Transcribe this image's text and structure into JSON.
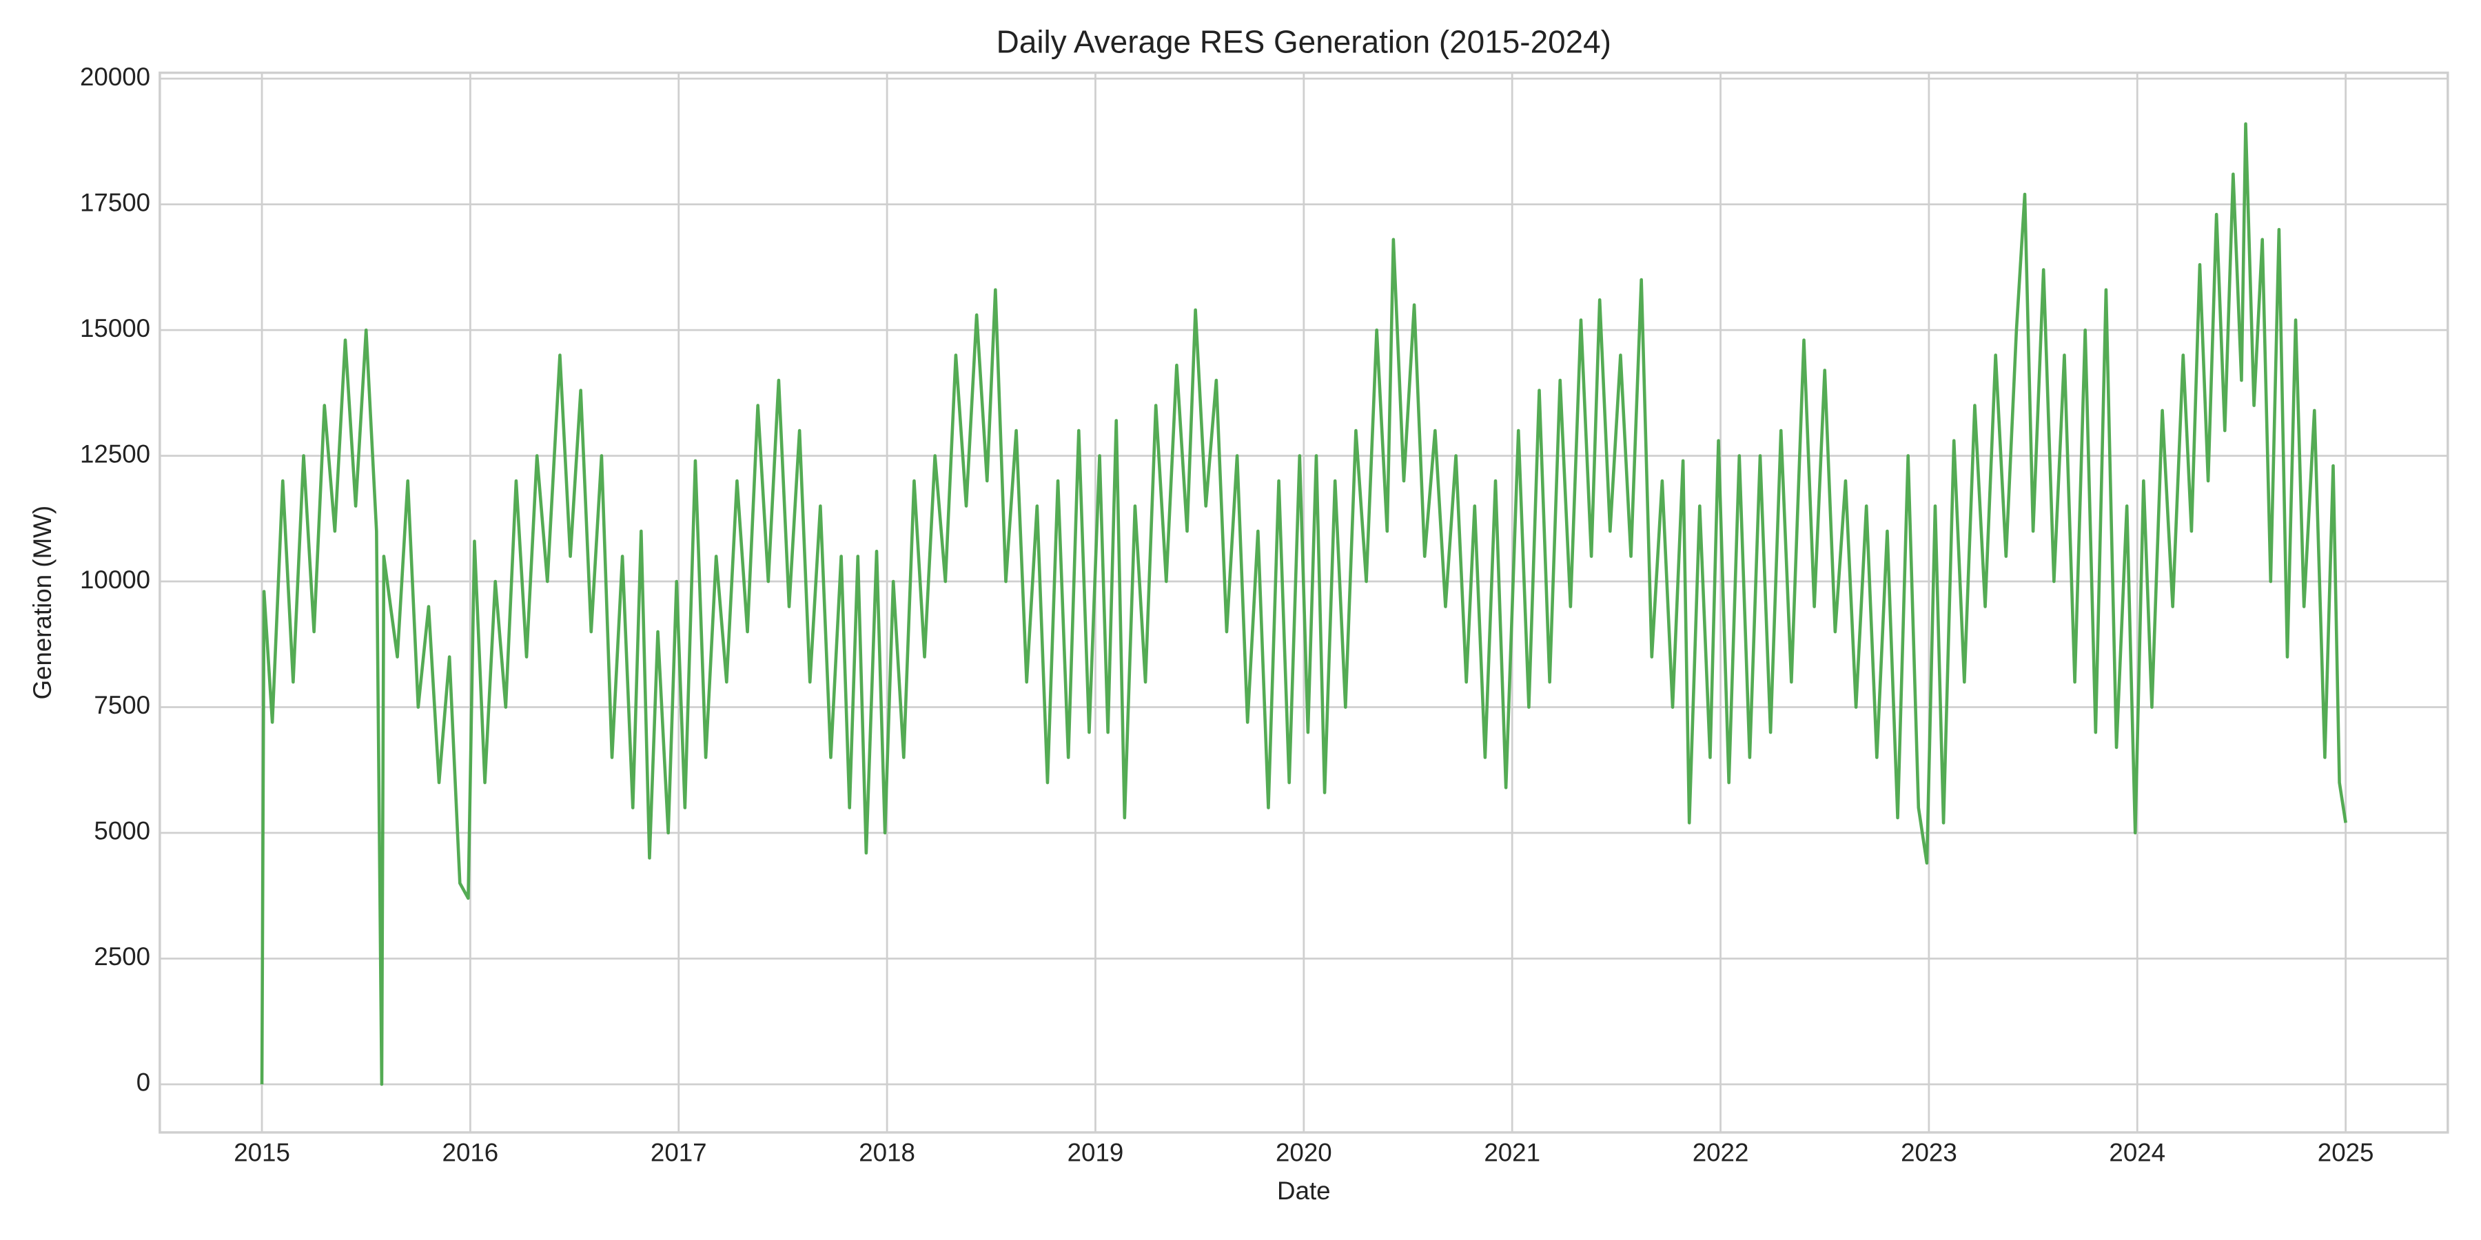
{
  "chart_data": {
    "type": "line",
    "title": "Daily Average RES Generation (2015-2024)",
    "x_label": "Date",
    "y_label": "Generation (MW)",
    "x": [
      2015.0,
      2015.01,
      2015.05,
      2015.1,
      2015.15,
      2015.2,
      2015.25,
      2015.3,
      2015.35,
      2015.4,
      2015.45,
      2015.5,
      2015.55,
      2015.575,
      2015.585,
      2015.65,
      2015.7,
      2015.75,
      2015.8,
      2015.85,
      2015.9,
      2015.95,
      2015.99,
      2016.02,
      2016.07,
      2016.12,
      2016.17,
      2016.22,
      2016.27,
      2016.32,
      2016.37,
      2016.43,
      2016.48,
      2016.53,
      2016.58,
      2016.63,
      2016.68,
      2016.73,
      2016.78,
      2016.82,
      2016.86,
      2016.9,
      2016.95,
      2016.99,
      2017.03,
      2017.08,
      2017.13,
      2017.18,
      2017.23,
      2017.28,
      2017.33,
      2017.38,
      2017.43,
      2017.48,
      2017.53,
      2017.58,
      2017.63,
      2017.68,
      2017.73,
      2017.78,
      2017.82,
      2017.86,
      2017.9,
      2017.95,
      2017.99,
      2018.03,
      2018.08,
      2018.13,
      2018.18,
      2018.23,
      2018.28,
      2018.33,
      2018.38,
      2018.43,
      2018.48,
      2018.52,
      2018.57,
      2018.62,
      2018.67,
      2018.72,
      2018.77,
      2018.82,
      2018.87,
      2018.92,
      2018.97,
      2019.02,
      2019.06,
      2019.1,
      2019.14,
      2019.19,
      2019.24,
      2019.29,
      2019.34,
      2019.39,
      2019.44,
      2019.48,
      2019.53,
      2019.58,
      2019.63,
      2019.68,
      2019.73,
      2019.78,
      2019.83,
      2019.88,
      2019.93,
      2019.98,
      2020.02,
      2020.06,
      2020.1,
      2020.15,
      2020.2,
      2020.25,
      2020.3,
      2020.35,
      2020.4,
      2020.43,
      2020.48,
      2020.53,
      2020.58,
      2020.63,
      2020.68,
      2020.73,
      2020.78,
      2020.82,
      2020.87,
      2020.92,
      2020.97,
      2021.03,
      2021.08,
      2021.13,
      2021.18,
      2021.23,
      2021.28,
      2021.33,
      2021.38,
      2021.42,
      2021.47,
      2021.52,
      2021.57,
      2021.62,
      2021.67,
      2021.72,
      2021.77,
      2021.82,
      2021.85,
      2021.9,
      2021.95,
      2021.99,
      2022.04,
      2022.09,
      2022.14,
      2022.19,
      2022.24,
      2022.29,
      2022.34,
      2022.4,
      2022.45,
      2022.5,
      2022.55,
      2022.6,
      2022.65,
      2022.7,
      2022.75,
      2022.8,
      2022.85,
      2022.9,
      2022.95,
      2022.99,
      2023.03,
      2023.07,
      2023.12,
      2023.17,
      2023.22,
      2023.27,
      2023.32,
      2023.37,
      2023.42,
      2023.46,
      2023.5,
      2023.55,
      2023.6,
      2023.65,
      2023.7,
      2023.75,
      2023.8,
      2023.85,
      2023.9,
      2023.95,
      2023.99,
      2024.03,
      2024.07,
      2024.12,
      2024.17,
      2024.22,
      2024.26,
      2024.3,
      2024.34,
      2024.38,
      2024.42,
      2024.46,
      2024.5,
      2024.52,
      2024.56,
      2024.6,
      2024.64,
      2024.68,
      2024.72,
      2024.76,
      2024.8,
      2024.85,
      2024.9,
      2024.94,
      2024.97,
      2025.0
    ],
    "series": [
      {
        "color": "#4ba64b",
        "values": [
          0,
          9800,
          7200,
          12000,
          8000,
          12500,
          9000,
          13500,
          11000,
          14800,
          11500,
          15000,
          11000,
          0,
          10500,
          8500,
          12000,
          7500,
          9500,
          6000,
          8500,
          4000,
          3700,
          10800,
          6000,
          10000,
          7500,
          12000,
          8500,
          12500,
          10000,
          14500,
          10500,
          13800,
          9000,
          12500,
          6500,
          10500,
          5500,
          11000,
          4500,
          9000,
          5000,
          10000,
          5500,
          12400,
          6500,
          10500,
          8000,
          12000,
          9000,
          13500,
          10000,
          14000,
          9500,
          13000,
          8000,
          11500,
          6500,
          10500,
          5500,
          10500,
          4600,
          10600,
          5000,
          10000,
          6500,
          12000,
          8500,
          12500,
          10000,
          14500,
          11500,
          15300,
          12000,
          15800,
          10000,
          13000,
          8000,
          11500,
          6000,
          12000,
          6500,
          13000,
          7000,
          12500,
          7000,
          13200,
          5300,
          11500,
          8000,
          13500,
          10000,
          14300,
          11000,
          15400,
          11500,
          14000,
          9000,
          12500,
          7200,
          11000,
          5500,
          12000,
          6000,
          12500,
          7000,
          12500,
          5800,
          12000,
          7500,
          13000,
          10000,
          15000,
          11000,
          16800,
          12000,
          15500,
          10500,
          13000,
          9500,
          12500,
          8000,
          11500,
          6500,
          12000,
          5900,
          13000,
          7500,
          13800,
          8000,
          14000,
          9500,
          15200,
          10500,
          15600,
          11000,
          14500,
          10500,
          16000,
          8500,
          12000,
          7500,
          12400,
          5200,
          11500,
          6500,
          12800,
          6000,
          12500,
          6500,
          12500,
          7000,
          13000,
          8000,
          14800,
          9500,
          14200,
          9000,
          12000,
          7500,
          11500,
          6500,
          11000,
          5300,
          12500,
          5500,
          4400,
          11500,
          5200,
          12800,
          8000,
          13500,
          9500,
          14500,
          10500,
          15000,
          17700,
          11000,
          16200,
          10000,
          14500,
          8000,
          15000,
          7000,
          15800,
          6700,
          11500,
          5000,
          12000,
          7500,
          13400,
          9500,
          14500,
          11000,
          16300,
          12000,
          17300,
          13000,
          18100,
          14000,
          19100,
          13500,
          16800,
          10000,
          17000,
          8500,
          15200,
          9500,
          13400,
          6500,
          12300,
          6000,
          5200
        ]
      }
    ],
    "xlim": [
      2014.51,
      2025.49
    ],
    "xticks": [
      2015,
      2016,
      2017,
      2018,
      2019,
      2020,
      2021,
      2022,
      2023,
      2024,
      2025
    ],
    "ylim": [
      -958,
      20117
    ],
    "yticks": [
      0,
      2500,
      5000,
      7500,
      10000,
      12500,
      15000,
      17500,
      20000
    ],
    "grid": true
  }
}
